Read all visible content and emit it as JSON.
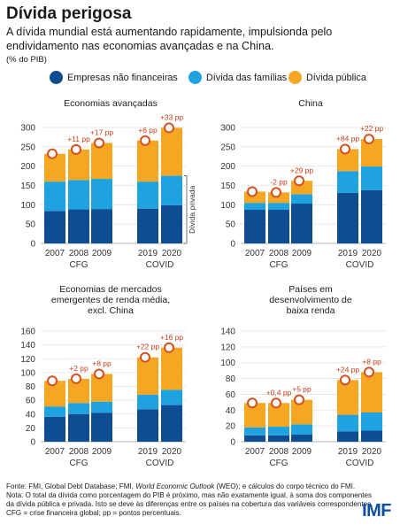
{
  "header": {
    "title": "Dívida perigosa",
    "subtitle": "A dívida mundial está aumentando rapidamente, impulsionda pelo endividamento nas economias avançadas e na China.",
    "unit": "(% do PIB)"
  },
  "legend": {
    "items": [
      {
        "label": "Empresas não financeiras",
        "color": "#0e4d92"
      },
      {
        "label": "Dívida das famílias",
        "color": "#1ea2e0"
      },
      {
        "label": "Dívida pública",
        "color": "#f5a623"
      }
    ]
  },
  "colors": {
    "corp": "#0e4d92",
    "house": "#1ea2e0",
    "public": "#f5a623",
    "marker": "#d4501e",
    "gain": "#c9401b",
    "loss": "#c9401b"
  },
  "chart_data": [
    {
      "type": "bar",
      "stacked": true,
      "title": "Economias avançadas",
      "categories": [
        "2007",
        "2008",
        "2009",
        "2019",
        "2020"
      ],
      "group_labels": {
        "crisis": "CFG",
        "covid": "COVID"
      },
      "ylim": [
        0,
        300
      ],
      "yticks": [
        0,
        50,
        100,
        150,
        200,
        250,
        300
      ],
      "series": [
        {
          "name": "Empresas não financeiras",
          "values": [
            84,
            88,
            89,
            90,
            99
          ]
        },
        {
          "name": "Dívida das famílias",
          "values": [
            76,
            76,
            78,
            70,
            76
          ]
        },
        {
          "name": "Dívida pública",
          "values": [
            72,
            79,
            93,
            106,
            124
          ]
        }
      ],
      "annotations": [
        "",
        "+11 pp",
        "+17 pp",
        "+6 pp",
        "+33 pp"
      ],
      "bracket_label": "Dívida privada"
    },
    {
      "type": "bar",
      "stacked": true,
      "title": "China",
      "categories": [
        "2007",
        "2008",
        "2009",
        "2019",
        "2020"
      ],
      "group_labels": {
        "crisis": "CFG",
        "covid": "COVID"
      },
      "ylim": [
        0,
        300
      ],
      "yticks": [
        0,
        50,
        100,
        150,
        200,
        250,
        300
      ],
      "series": [
        {
          "name": "Empresas não financeiras",
          "values": [
            87,
            87,
            103,
            131,
            138
          ]
        },
        {
          "name": "Dívida das famílias",
          "values": [
            18,
            18,
            24,
            56,
            61
          ]
        },
        {
          "name": "Dívida pública",
          "values": [
            29,
            27,
            35,
            57,
            71
          ]
        }
      ],
      "annotations": [
        "",
        "-2 pp",
        "+29 pp",
        "+84 pp",
        "+22 pp"
      ]
    },
    {
      "type": "bar",
      "stacked": true,
      "title": "Economias de mercados emergentes de renda média, excl. China",
      "categories": [
        "2007",
        "2008",
        "2009",
        "2019",
        "2020"
      ],
      "group_labels": {
        "crisis": "CFG",
        "covid": "COVID"
      },
      "ylim": [
        0,
        160
      ],
      "yticks": [
        0,
        20,
        40,
        60,
        80,
        100,
        120,
        140,
        160
      ],
      "series": [
        {
          "name": "Empresas não financeiras",
          "values": [
            36,
            40,
            42,
            47,
            53
          ]
        },
        {
          "name": "Dívida das famílias",
          "values": [
            15,
            16,
            16,
            21,
            22
          ]
        },
        {
          "name": "Dívida pública",
          "values": [
            37,
            35,
            40,
            54,
            61
          ]
        }
      ],
      "annotations": [
        "",
        "+2 pp",
        "+8 pp",
        "+22 pp",
        "+16 pp"
      ]
    },
    {
      "type": "bar",
      "stacked": true,
      "title": "Países em desenvolvimento de baixa renda",
      "categories": [
        "2007",
        "2008",
        "2009",
        "2019",
        "2020"
      ],
      "group_labels": {
        "crisis": "CFG",
        "covid": "COVID"
      },
      "ylim": [
        0,
        140
      ],
      "yticks": [
        0,
        20,
        40,
        60,
        80,
        100,
        120,
        140
      ],
      "series": [
        {
          "name": "Empresas não financeiras",
          "values": [
            8,
            8,
            9,
            13,
            14
          ]
        },
        {
          "name": "Dívida das famílias",
          "values": [
            10,
            11,
            13,
            21,
            23
          ]
        },
        {
          "name": "Dívida pública",
          "values": [
            31,
            30,
            31,
            44,
            51
          ]
        }
      ],
      "annotations": [
        "",
        "+0,4 pp",
        "+5 pp",
        "+24 pp",
        "+8 pp"
      ]
    }
  ],
  "footer": {
    "source_a": "Fonte: FMI, Global Debt Database; FMI, ",
    "source_weo": "World Economic Outlook",
    "source_b": " (WEO); e cálculos do corpo técnico do FMI.",
    "note": "Nota: O total da dívida como porcentagem do PIB é próximo, mas não exatamente igual, à soma dos componentes da dívida pública e privada. Isto se deve às diferenças entre os países na cobertura das variáveis correspondentes. CFG = crise financeira global; pp = pontos percentuais.",
    "logo": "IMF"
  }
}
